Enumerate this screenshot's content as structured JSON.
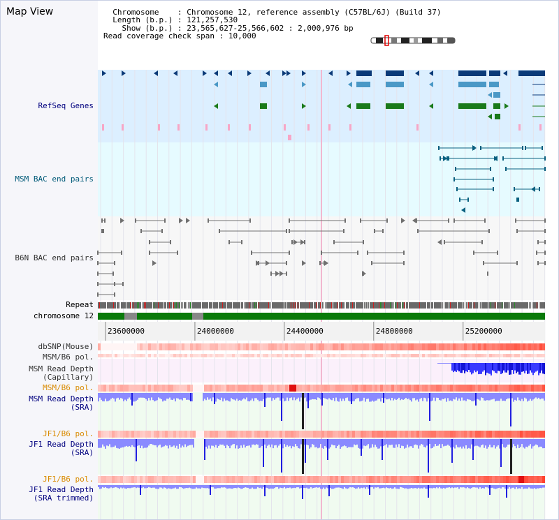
{
  "window": {
    "title": "Map View"
  },
  "info": {
    "chromosome_label": "Chromosome",
    "chromosome_value": "Chromosome 12, reference assembly (C57BL/6J) (Build 37)",
    "length_label": "Length (b.p.)",
    "length_value": "121,257,530",
    "show_label": "Show (b.p.)",
    "show_value": "23,565,627-25,566,602 : 2,000,976 bp",
    "coverage_label": "Read coverage check span",
    "coverage_value": "10,000"
  },
  "tracks": {
    "refseq": "RefSeq Genes",
    "msm_bac": "MSM BAC end pairs",
    "b6n_bac": "B6N BAC end pairs",
    "repeat": "Repeat",
    "chromosome": "chromosome 12",
    "dbsnp": "dbSNP(Mouse)",
    "msm_b6_pol_1": "MSM/B6 pol.",
    "msm_depth_cap": "MSM Read Depth\n(Capillary)",
    "msm_b6_pol_2": "MSM/B6 pol.",
    "msm_depth_sra": "MSM Read Depth\n(SRA)",
    "jf1_b6_pol_1": "JF1/B6 pol.",
    "jf1_depth_sra": "JF1 Read Depth\n(SRA)",
    "jf1_b6_pol_2": "JF1/B6 pol.",
    "jf1_depth_trim": "JF1 Read Depth\n(SRA trimmed)"
  },
  "colors": {
    "refseq_bg": "#dcefff",
    "msm_bac_bg": "#e6fbff",
    "gene_navy": "#0b3a78",
    "gene_steel": "#4a98c6",
    "gene_green": "#1a7a1a",
    "pink": "#f7a6c6",
    "bac_teal": "#0a6080",
    "bac_gray": "#707070",
    "chromosome_green": "#0a7a0a",
    "depth_blue": "#2020e0",
    "depth_light": "#8a8aff",
    "label_orange": "#d98a00"
  },
  "chart_data": {
    "type": "table",
    "x_axis": {
      "range": [
        23565627,
        25566602
      ],
      "ticks": [
        23600000,
        24000000,
        24400000,
        24800000,
        25200000
      ],
      "tick_labels": [
        "23600000",
        "24000000",
        "24400000",
        "24800000",
        "25200000"
      ]
    }
  }
}
